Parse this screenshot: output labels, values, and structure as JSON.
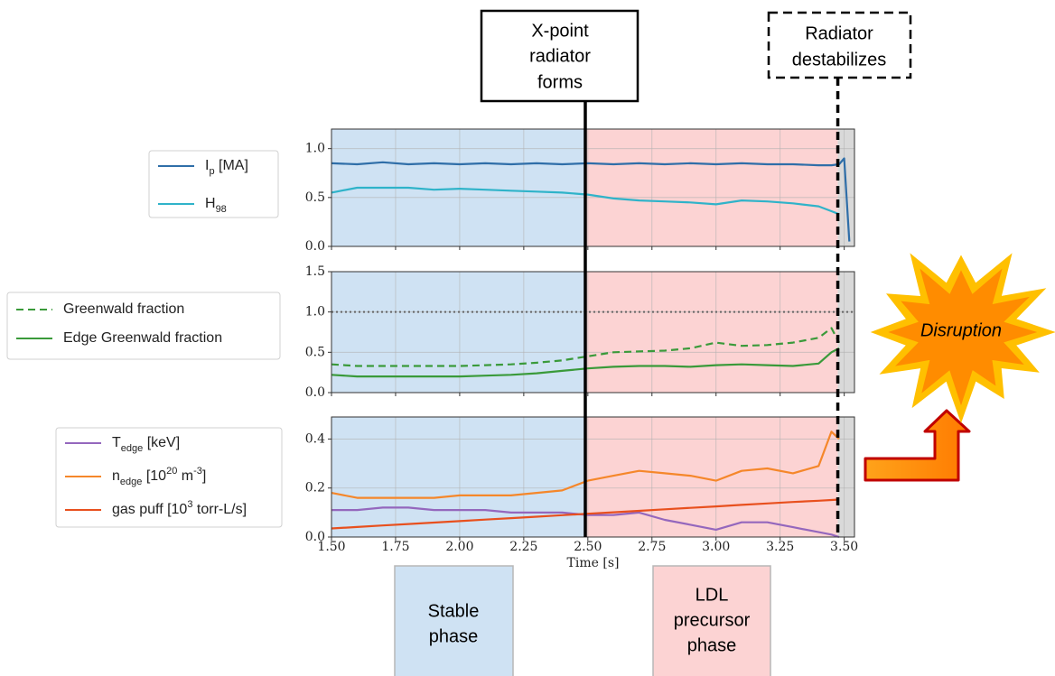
{
  "chart_data": [
    {
      "type": "line",
      "xlim": [
        1.5,
        3.54
      ],
      "ylim": [
        0,
        1.2
      ],
      "yticks": [
        {
          "value": 0,
          "label": "0.0"
        },
        0.5,
        {
          "value": 1,
          "label": "1.0"
        }
      ],
      "x": [
        1.5,
        1.6,
        1.7,
        1.8,
        1.9,
        2.0,
        2.1,
        2.2,
        2.3,
        2.4,
        2.5,
        2.6,
        2.7,
        2.8,
        2.9,
        3.0,
        3.1,
        3.2,
        3.3,
        3.4,
        3.45,
        3.48,
        3.5,
        3.52
      ],
      "series": [
        {
          "name": "I_p [MA]",
          "color": "#2f6ea8",
          "values": [
            0.85,
            0.84,
            0.86,
            0.84,
            0.85,
            0.84,
            0.85,
            0.84,
            0.85,
            0.84,
            0.85,
            0.84,
            0.85,
            0.84,
            0.85,
            0.84,
            0.85,
            0.84,
            0.84,
            0.83,
            0.83,
            0.84,
            0.9,
            0.05
          ]
        },
        {
          "name": "H_98",
          "color": "#2fb3c9",
          "values": [
            0.55,
            0.6,
            0.6,
            0.6,
            0.58,
            0.59,
            0.58,
            0.57,
            0.56,
            0.55,
            0.53,
            0.49,
            0.47,
            0.46,
            0.45,
            0.43,
            0.47,
            0.46,
            0.44,
            0.41,
            0.36,
            0.33,
            null,
            null
          ]
        }
      ]
    },
    {
      "type": "line",
      "xlim": [
        1.5,
        3.54
      ],
      "ylim": [
        0,
        1.5
      ],
      "yticks": [
        {
          "value": 0,
          "label": "0.0"
        },
        0.5,
        {
          "value": 1,
          "label": "1.0"
        },
        1.5
      ],
      "hline": {
        "y": 1,
        "color": "#666666"
      },
      "x": [
        1.5,
        1.6,
        1.7,
        1.8,
        1.9,
        2.0,
        2.1,
        2.2,
        2.3,
        2.4,
        2.5,
        2.6,
        2.7,
        2.8,
        2.9,
        3.0,
        3.1,
        3.2,
        3.3,
        3.4,
        3.45,
        3.48
      ],
      "series": [
        {
          "name": "Greenwald fraction",
          "color": "#3a9a3a",
          "dash": "8 5",
          "values": [
            0.35,
            0.33,
            0.33,
            0.33,
            0.33,
            0.33,
            0.34,
            0.35,
            0.37,
            0.4,
            0.45,
            0.5,
            0.51,
            0.52,
            0.55,
            0.62,
            0.58,
            0.59,
            0.62,
            0.68,
            0.8,
            0.62
          ]
        },
        {
          "name": "Edge Greenwald fraction",
          "color": "#3a9a3a",
          "values": [
            0.22,
            0.2,
            0.2,
            0.2,
            0.2,
            0.2,
            0.21,
            0.22,
            0.24,
            0.27,
            0.3,
            0.32,
            0.33,
            0.33,
            0.32,
            0.34,
            0.35,
            0.34,
            0.33,
            0.36,
            0.5,
            0.55
          ]
        }
      ]
    },
    {
      "type": "line",
      "xlim": [
        1.5,
        3.54
      ],
      "ylim": [
        0,
        0.49
      ],
      "xlabel": "Time [s]",
      "yticks": [
        {
          "value": 0,
          "label": "0.0"
        },
        0.2,
        0.4
      ],
      "xticks": [
        {
          "value": 1.5,
          "label": "1.50"
        },
        1.75,
        {
          "value": 2,
          "label": "2.00"
        },
        2.25,
        {
          "value": 2.5,
          "label": "2.50"
        },
        2.75,
        {
          "value": 3,
          "label": "3.00"
        },
        3.25,
        {
          "value": 3.5,
          "label": "3.50"
        }
      ],
      "x": [
        1.5,
        1.6,
        1.7,
        1.8,
        1.9,
        2.0,
        2.1,
        2.2,
        2.3,
        2.4,
        2.5,
        2.6,
        2.7,
        2.8,
        2.9,
        3.0,
        3.1,
        3.2,
        3.3,
        3.4,
        3.45,
        3.48
      ],
      "series": [
        {
          "name": "T_edge [keV]",
          "color": "#9467bd",
          "values": [
            0.11,
            0.11,
            0.12,
            0.12,
            0.11,
            0.11,
            0.11,
            0.1,
            0.1,
            0.1,
            0.09,
            0.09,
            0.1,
            0.07,
            0.05,
            0.03,
            0.06,
            0.06,
            0.04,
            0.02,
            0.01,
            0
          ]
        },
        {
          "name": "n_edge [10^20 m^-3]",
          "color": "#f5872a",
          "values": [
            0.18,
            0.16,
            0.16,
            0.16,
            0.16,
            0.17,
            0.17,
            0.17,
            0.18,
            0.19,
            0.23,
            0.25,
            0.27,
            0.26,
            0.25,
            0.23,
            0.27,
            0.28,
            0.26,
            0.29,
            0.43,
            0.4
          ]
        },
        {
          "name": "gas puff [10^3 torr-L/s]",
          "color": "#e8501e",
          "values": [
            0.035,
            0.041,
            0.047,
            0.053,
            0.059,
            0.065,
            0.071,
            0.077,
            0.083,
            0.089,
            0.095,
            0.101,
            0.107,
            0.113,
            0.119,
            0.125,
            0.131,
            0.137,
            0.143,
            0.148,
            0.151,
            0.153
          ]
        }
      ]
    }
  ],
  "figure": {
    "phases": [
      {
        "start": 1.5,
        "end": 2.49,
        "color": "#cfe2f3"
      },
      {
        "start": 2.49,
        "end": 3.475,
        "color": "#fcd3d3"
      },
      {
        "start": 3.475,
        "end": 3.54,
        "color": "#d9d9d9"
      }
    ],
    "event_lines": [
      {
        "x": 2.49,
        "dash": "none"
      },
      {
        "x": 3.475,
        "dash": "9 6"
      }
    ],
    "annotations": {
      "xpoint": [
        "X-point",
        "radiator",
        "forms"
      ],
      "destabilizes": [
        "Radiator",
        "destabilizes"
      ],
      "disruption": "Disruption",
      "stable": [
        "Stable",
        "phase"
      ],
      "ldl": [
        "LDL",
        "precursor",
        "phase"
      ]
    }
  }
}
